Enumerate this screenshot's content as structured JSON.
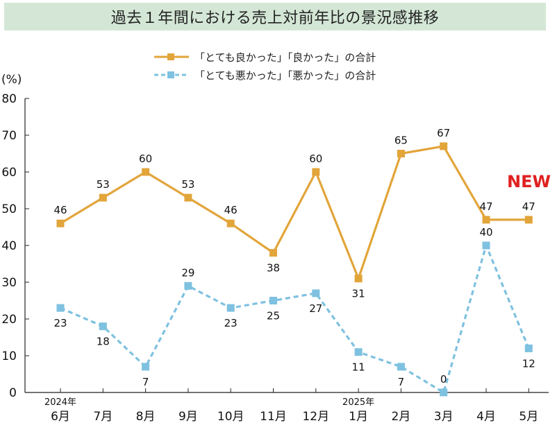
{
  "title": "過去１年間における売上対前年比の景況感推移",
  "chart_data": {
    "type": "line",
    "categories": [
      "6月",
      "7月",
      "8月",
      "9月",
      "10月",
      "11月",
      "12月",
      "1月",
      "2月",
      "3月",
      "4月",
      "5月"
    ],
    "year_markers": [
      {
        "index": 0,
        "label": "2024年"
      },
      {
        "index": 7,
        "label": "2025年"
      }
    ],
    "series": [
      {
        "name": "「とても良かった」「良かった」の合計",
        "color": "#e2a53a",
        "dash": "solid",
        "values": [
          46,
          53,
          60,
          53,
          46,
          38,
          60,
          31,
          65,
          67,
          47,
          47
        ]
      },
      {
        "name": "「とても悪かった」「悪かった」の合計",
        "color": "#7ec1e0",
        "dash": "dashed",
        "values": [
          23,
          18,
          7,
          29,
          23,
          25,
          27,
          11,
          7,
          0,
          40,
          12
        ]
      }
    ],
    "ylabel": "(%)",
    "ylim": [
      0,
      80
    ],
    "yticks": [
      0,
      10,
      20,
      30,
      40,
      50,
      60,
      70,
      80
    ],
    "badge": "NEW",
    "grid": false,
    "legend_position": "top-center"
  }
}
